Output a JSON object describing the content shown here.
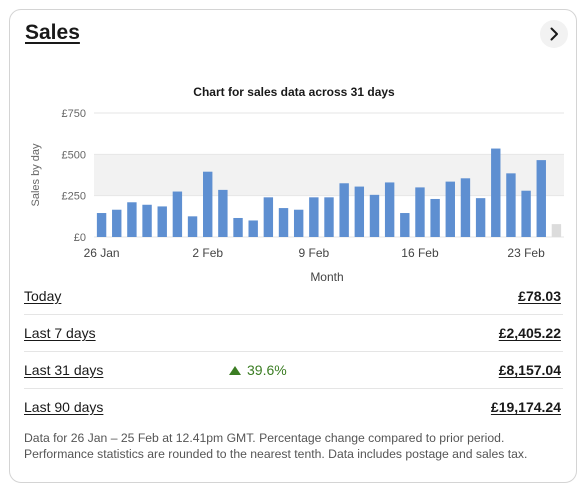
{
  "card": {
    "title": "Sales",
    "chevron_icon": "chevron-right-icon"
  },
  "chart_data": {
    "type": "bar",
    "title": "Chart for sales data across 31 days",
    "xlabel": "Month",
    "ylabel": "Sales by day",
    "ylim": [
      0,
      750
    ],
    "yticks": [
      "£0",
      "£250",
      "£500",
      "£750"
    ],
    "ytick_values": [
      0,
      250,
      500,
      750
    ],
    "xtick_labels": [
      {
        "label": "26 Jan",
        "index": 0
      },
      {
        "label": "2 Feb",
        "index": 7
      },
      {
        "label": "9 Feb",
        "index": 14
      },
      {
        "label": "16 Feb",
        "index": 21
      },
      {
        "label": "23 Feb",
        "index": 28
      }
    ],
    "values": [
      145,
      165,
      210,
      195,
      185,
      275,
      125,
      395,
      285,
      115,
      100,
      240,
      175,
      165,
      240,
      240,
      325,
      305,
      255,
      330,
      145,
      300,
      230,
      335,
      355,
      235,
      535,
      385,
      280,
      465,
      78
    ],
    "bar_color": "#5e8fd1",
    "partial_bar_color": "#dcdcdc",
    "grid": true
  },
  "rows": [
    {
      "label": "Today",
      "value": "£78.03",
      "change": ""
    },
    {
      "label": "Last 7 days",
      "value": "£2,405.22",
      "change": ""
    },
    {
      "label": "Last 31 days",
      "value": "£8,157.04",
      "change": "39.6%"
    },
    {
      "label": "Last 90 days",
      "value": "£19,174.24",
      "change": ""
    }
  ],
  "change_color": "#3b7d23",
  "footnote": "Data for 26 Jan – 25 Feb at 12.41pm GMT. Percentage change compared to prior period. Performance statistics are rounded to the nearest tenth. Data includes postage and sales tax."
}
